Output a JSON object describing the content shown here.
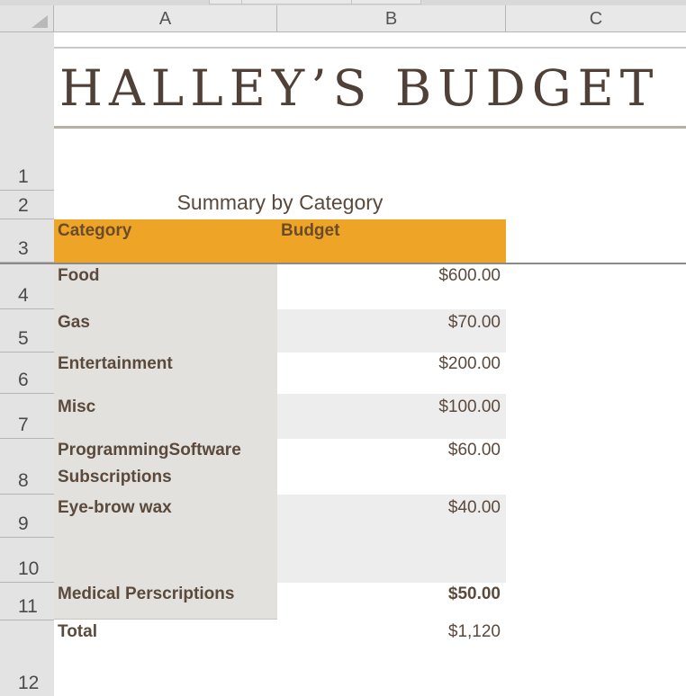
{
  "spreadsheet": {
    "columns": [
      "A",
      "B",
      "C"
    ],
    "rows": [
      "1",
      "2",
      "3",
      "4",
      "5",
      "6",
      "7",
      "8",
      "9",
      "10",
      "11",
      "12"
    ]
  },
  "title": "HALLEY’S BUDGET",
  "subtitle": "Summary by Category",
  "table": {
    "headers": {
      "category": "Category",
      "budget": "Budget"
    },
    "items": [
      {
        "category": "Food",
        "budget": "$600.00"
      },
      {
        "category": "Gas",
        "budget": "$70.00"
      },
      {
        "category": "Entertainment",
        "budget": "$200.00"
      },
      {
        "category": "Misc",
        "budget": "$100.00"
      },
      {
        "category": "ProgrammingSoftware Subscriptions",
        "budget": "$60.00"
      },
      {
        "category": "Eye-brow wax",
        "budget": "$40.00"
      },
      {
        "category": "Medical Perscriptions",
        "budget": "$50.00"
      }
    ],
    "total": {
      "label": "Total",
      "value": "$1,120"
    }
  },
  "colors": {
    "header_bar": "#eda427",
    "category_fill": "#e3e1dd",
    "band_fill": "#ededed",
    "text": "#5b4a3c"
  }
}
